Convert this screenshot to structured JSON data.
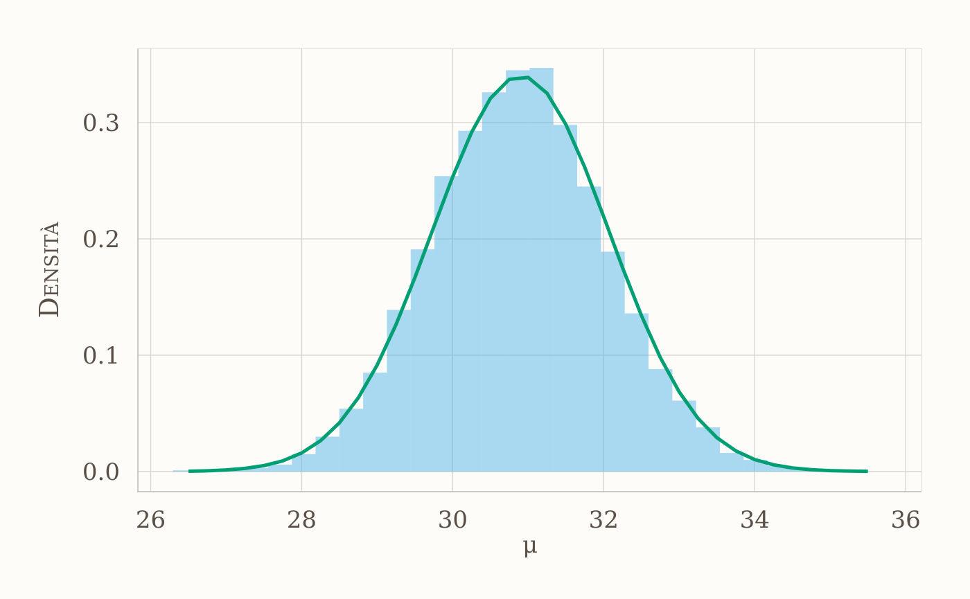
{
  "chart_data": {
    "type": "histogram",
    "x_label": "μ",
    "y_label": "Densità",
    "bins": [
      26.294,
      26.609,
      26.924,
      27.239,
      27.554,
      27.869,
      28.184,
      28.499,
      28.814,
      29.129,
      29.444,
      29.759,
      30.074,
      30.389,
      30.704,
      31.019,
      31.334,
      31.649,
      31.964,
      32.279,
      32.594,
      32.909,
      33.224,
      33.539,
      33.854,
      34.169,
      34.484,
      34.799,
      35.114
    ],
    "values": [
      0.001,
      0.001,
      0.002,
      0.003,
      0.006,
      0.015,
      0.03,
      0.054,
      0.085,
      0.139,
      0.191,
      0.254,
      0.293,
      0.326,
      0.345,
      0.347,
      0.298,
      0.245,
      0.189,
      0.136,
      0.088,
      0.061,
      0.038,
      0.016,
      0.01,
      0.005,
      0.003,
      0.001
    ],
    "color": "#56b4e9",
    "curve": {
      "color": "#009e73",
      "x": [
        26.5,
        26.75,
        27,
        27.25,
        27.5,
        27.75,
        28,
        28.25,
        28.5,
        28.75,
        29,
        29.25,
        29.5,
        29.75,
        30,
        30.25,
        30.5,
        30.75,
        31,
        31.25,
        31.5,
        31.75,
        32,
        32.25,
        32.5,
        32.75,
        33,
        33.25,
        33.5,
        33.75,
        34,
        34.25,
        34.5,
        34.75,
        35,
        35.25,
        35.5
      ],
      "values": [
        0.0003,
        0.00065,
        0.00135,
        0.0027,
        0.0051,
        0.0092,
        0.016,
        0.0265,
        0.0419,
        0.0634,
        0.0916,
        0.1264,
        0.1668,
        0.2103,
        0.2533,
        0.2916,
        0.3208,
        0.3372,
        0.3388,
        0.3252,
        0.2983,
        0.2615,
        0.2191,
        0.1753,
        0.1341,
        0.098,
        0.0685,
        0.0457,
        0.0291,
        0.0178,
        0.0103,
        0.0058,
        0.0031,
        0.0016,
        0.0008,
        0.0004,
        0.0002
      ]
    },
    "xlim": [
      25.83,
      36.21
    ],
    "ylim": [
      -0.0173,
      0.3637
    ],
    "xticks": [
      26,
      28,
      30,
      32,
      34,
      36
    ],
    "yticks": [
      {
        "value": 0,
        "label": "0.0"
      },
      0.1,
      0.2,
      0.3
    ],
    "grid": true
  }
}
